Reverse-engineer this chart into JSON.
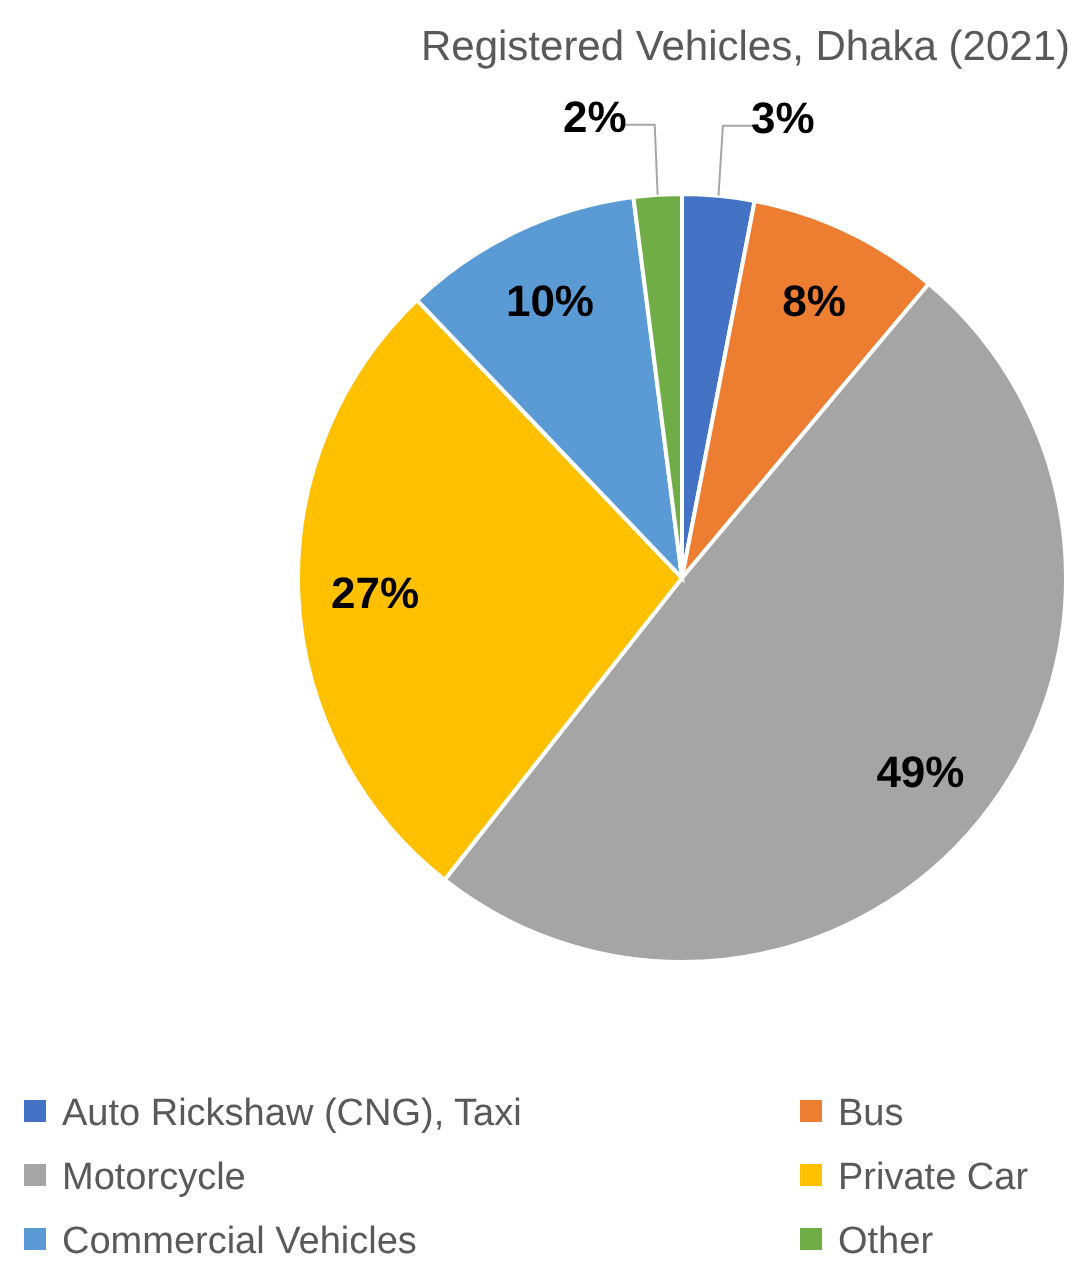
{
  "chart_data": {
    "type": "pie",
    "title": "Registered Vehicles, Dhaka (2021)",
    "categories": [
      "Auto Rickshaw (CNG), Taxi",
      "Bus",
      "Motorcycle",
      "Private Car",
      "Commercial Vehicles",
      "Other"
    ],
    "values": [
      3,
      8,
      49,
      27,
      10,
      2
    ],
    "colors": [
      "#4472c4",
      "#ed7d31",
      "#a5a5a5",
      "#ffc000",
      "#5b9bd5",
      "#70ad47"
    ],
    "value_labels": [
      "3%",
      "8%",
      "49%",
      "27%",
      "10%",
      "2%"
    ],
    "legend": "bottom"
  }
}
